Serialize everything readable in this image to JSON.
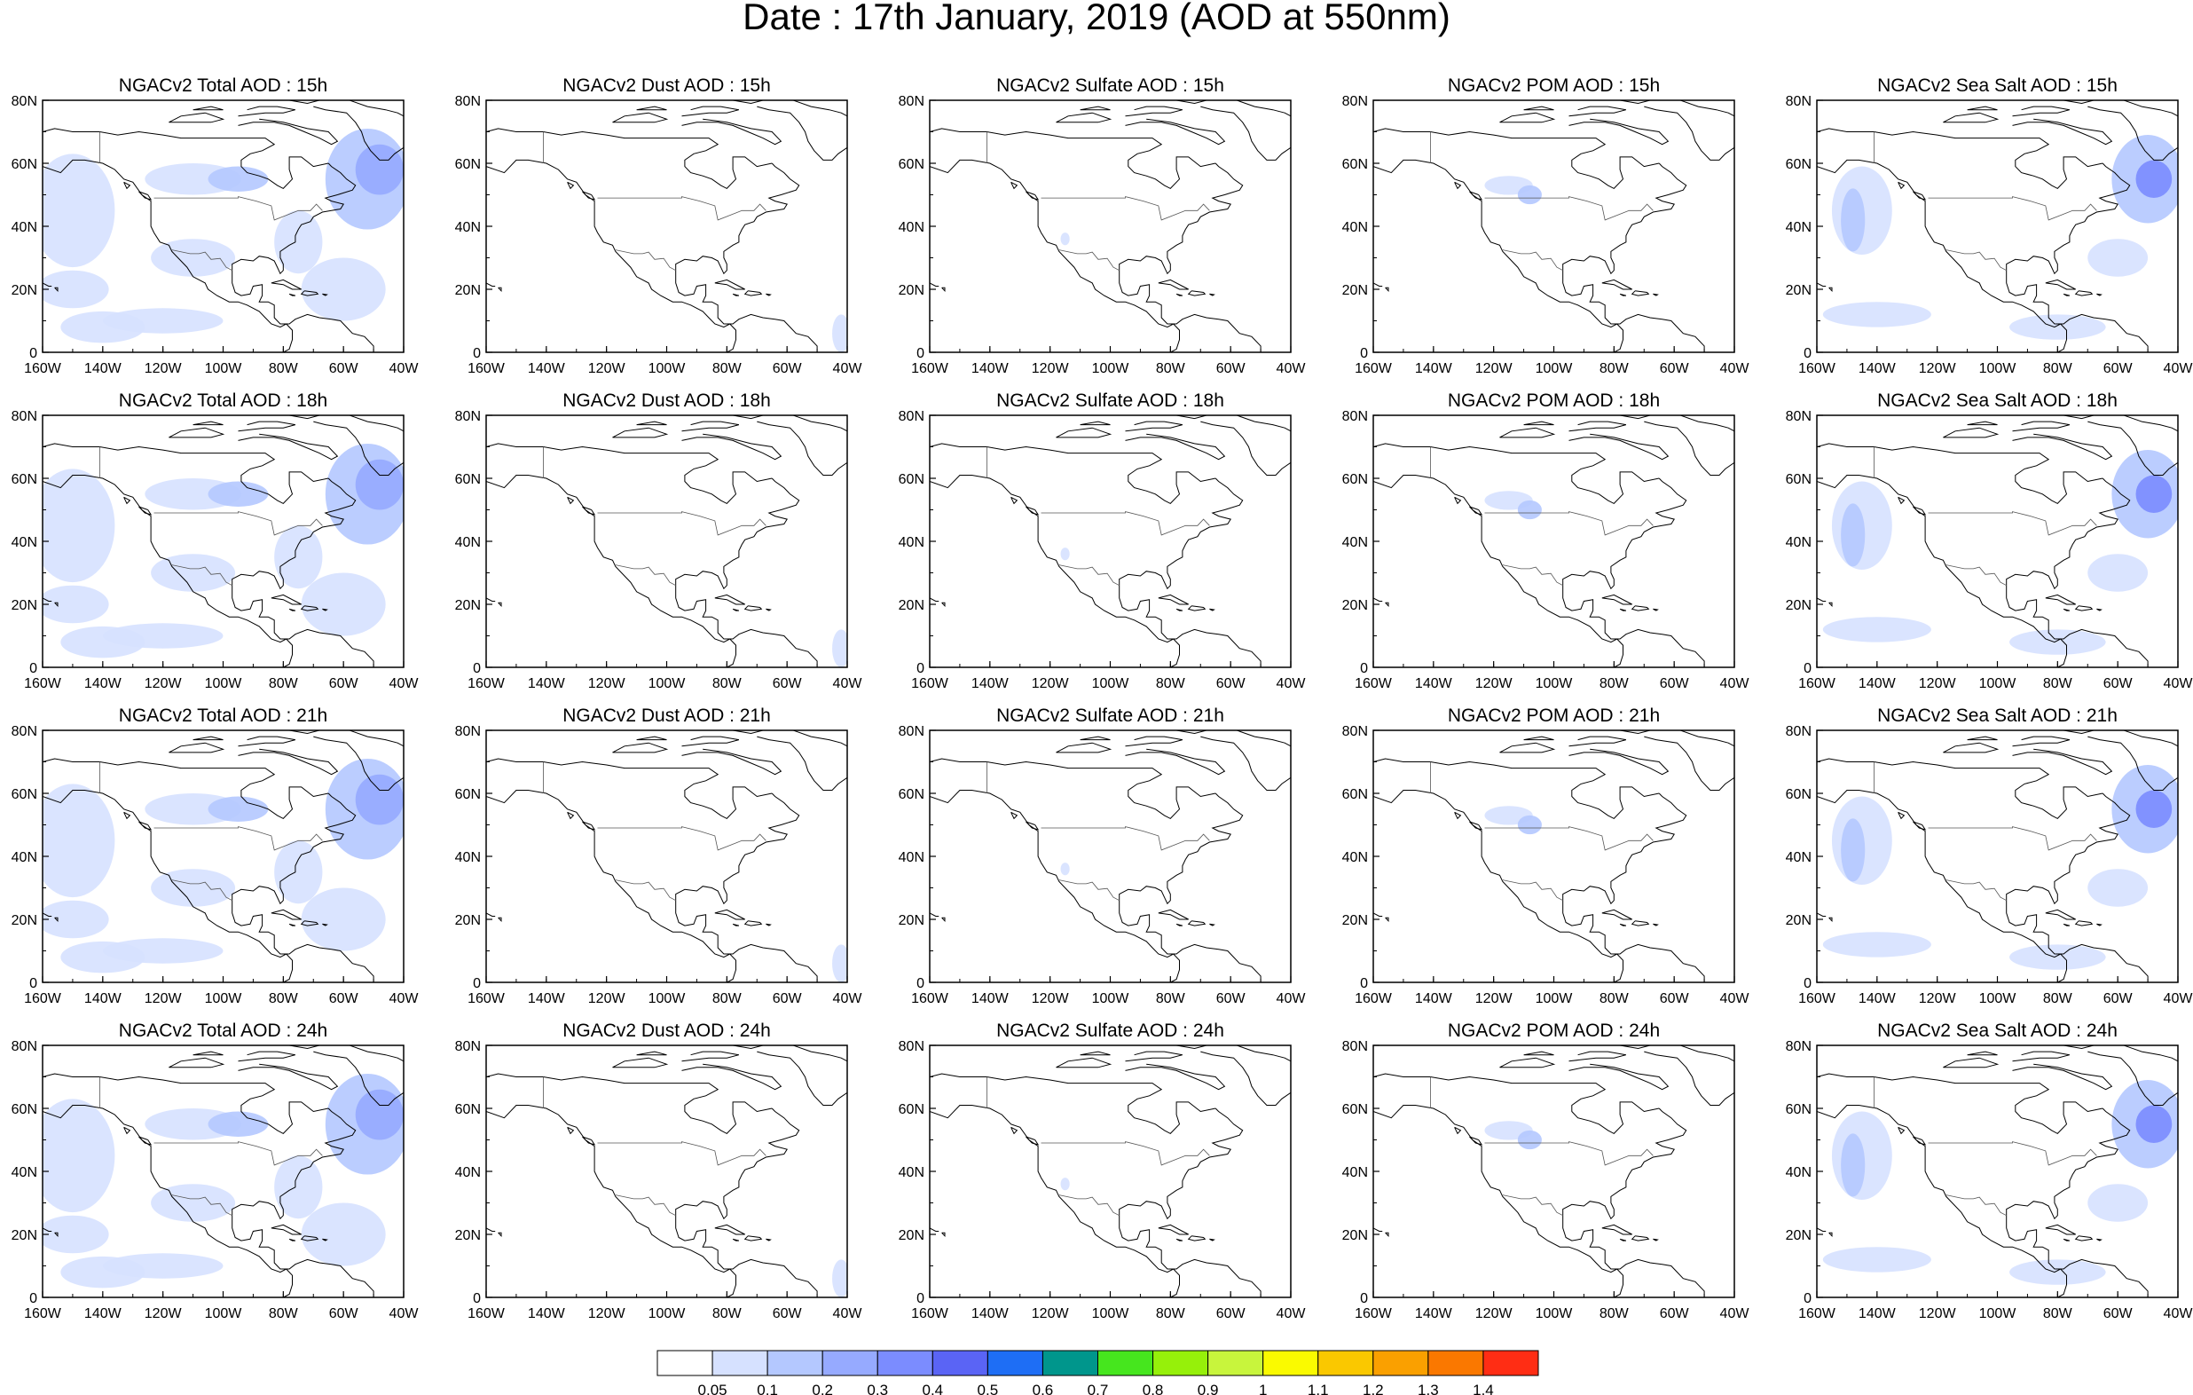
{
  "title": "Date : 17th January, 2019 (AOD at 550nm)",
  "chart_data": {
    "type": "heatmap",
    "rows": [
      "15h",
      "18h",
      "21h",
      "24h"
    ],
    "columns": [
      {
        "key": "total",
        "title_prefix": "NGACv2 Total AOD"
      },
      {
        "key": "dust",
        "title_prefix": "NGACv2 Dust AOD"
      },
      {
        "key": "sulfate",
        "title_prefix": "NGACv2 Sulfate AOD"
      },
      {
        "key": "pom",
        "title_prefix": "NGACv2 POM AOD"
      },
      {
        "key": "seasalt",
        "title_prefix": "NGACv2 Sea Salt AOD"
      }
    ],
    "panel_titles": [
      [
        "NGACv2 Total AOD : 15h",
        "NGACv2 Dust AOD : 15h",
        "NGACv2 Sulfate AOD : 15h",
        "NGACv2 POM AOD : 15h",
        "NGACv2 Sea Salt AOD : 15h"
      ],
      [
        "NGACv2 Total AOD : 18h",
        "NGACv2 Dust AOD : 18h",
        "NGACv2 Sulfate AOD : 18h",
        "NGACv2 POM AOD : 18h",
        "NGACv2 Sea Salt AOD : 18h"
      ],
      [
        "NGACv2 Total AOD : 21h",
        "NGACv2 Dust AOD : 21h",
        "NGACv2 Sulfate AOD : 21h",
        "NGACv2 POM AOD : 21h",
        "NGACv2 Sea Salt AOD : 21h"
      ],
      [
        "NGACv2 Total AOD : 24h",
        "NGACv2 Dust AOD : 24h",
        "NGACv2 Sulfate AOD : 24h",
        "NGACv2 POM AOD : 24h",
        "NGACv2 Sea Salt  AOD : 24h"
      ]
    ],
    "x_ticks": [
      "160W",
      "140W",
      "120W",
      "100W",
      "80W",
      "60W",
      "40W"
    ],
    "y_ticks": [
      "0",
      "20N",
      "40N",
      "60N",
      "80N"
    ],
    "lon_range": [
      -160,
      -40
    ],
    "lat_range": [
      0,
      80
    ],
    "colorbar": {
      "colors": [
        "#ffffff",
        "#d6e1ff",
        "#b4c8ff",
        "#96aaff",
        "#7b8cff",
        "#5a64f5",
        "#1e6ef5",
        "#00968c",
        "#46e61e",
        "#96f00a",
        "#c8f53c",
        "#fafa00",
        "#fac800",
        "#faa000",
        "#fa7800",
        "#ff2d14"
      ],
      "labels": [
        "0.05",
        "0.1",
        "0.2",
        "0.3",
        "0.4",
        "0.5",
        "0.6",
        "0.7",
        "0.8",
        "0.9",
        "1",
        "1.1",
        "1.2",
        "1.3",
        "1.4"
      ]
    }
  }
}
